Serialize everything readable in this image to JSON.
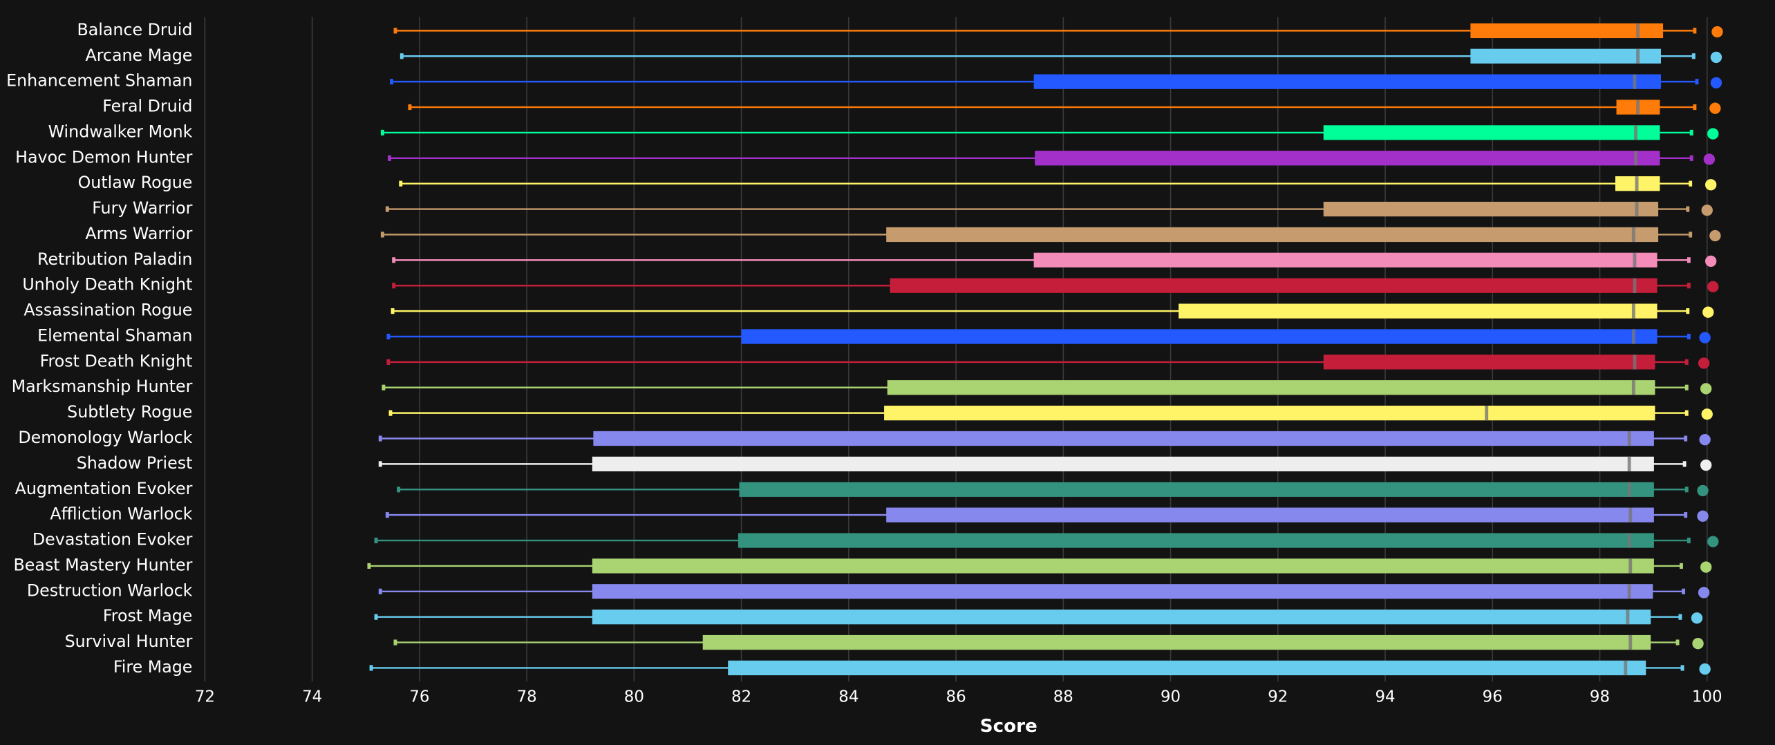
{
  "chart_data": {
    "type": "boxplot",
    "x_label": "Score",
    "xlim": [
      72,
      100
    ],
    "xticks": [
      72,
      74,
      76,
      78,
      80,
      82,
      84,
      86,
      88,
      90,
      92,
      94,
      96,
      98,
      100
    ],
    "grid": true,
    "boxes": [
      {
        "name": "Balance Druid",
        "color": "#ff7c0a",
        "whislo": 75.55,
        "q1": 95.59,
        "med": 98.71,
        "q3": 99.18,
        "whishi": 99.77,
        "top": 100.19
      },
      {
        "name": "Arcane Mage",
        "color": "#68ccef",
        "whislo": 75.67,
        "q1": 95.59,
        "med": 98.71,
        "q3": 99.14,
        "whishi": 99.75,
        "top": 100.17
      },
      {
        "name": "Enhancement Shaman",
        "color": "#2459ff",
        "whislo": 75.48,
        "q1": 87.45,
        "med": 98.65,
        "q3": 99.14,
        "whishi": 99.81,
        "top": 100.17
      },
      {
        "name": "Feral Druid",
        "color": "#ff7c0a",
        "whislo": 75.82,
        "q1": 98.31,
        "med": 98.71,
        "q3": 99.12,
        "whishi": 99.77,
        "top": 100.15
      },
      {
        "name": "Windwalker Monk",
        "color": "#00ff98",
        "whislo": 75.31,
        "q1": 92.85,
        "med": 98.67,
        "q3": 99.12,
        "whishi": 99.71,
        "top": 100.11
      },
      {
        "name": "Havoc Demon Hunter",
        "color": "#a330c9",
        "whislo": 75.44,
        "q1": 87.47,
        "med": 98.67,
        "q3": 99.12,
        "whishi": 99.71,
        "top": 100.04
      },
      {
        "name": "Outlaw Rogue",
        "color": "#fff468",
        "whislo": 75.65,
        "q1": 98.29,
        "med": 98.69,
        "q3": 99.12,
        "whishi": 99.69,
        "top": 100.07
      },
      {
        "name": "Fury Warrior",
        "color": "#c69b6d",
        "whislo": 75.4,
        "q1": 92.85,
        "med": 98.69,
        "q3": 99.09,
        "whishi": 99.64,
        "top": 100.0
      },
      {
        "name": "Arms Warrior",
        "color": "#c69b6d",
        "whislo": 75.31,
        "q1": 84.7,
        "med": 98.63,
        "q3": 99.09,
        "whishi": 99.69,
        "top": 100.15
      },
      {
        "name": "Retribution Paladin",
        "color": "#f48cba",
        "whislo": 75.52,
        "q1": 87.45,
        "med": 98.65,
        "q3": 99.07,
        "whishi": 99.66,
        "top": 100.07
      },
      {
        "name": "Unholy Death Knight",
        "color": "#c41e3a",
        "whislo": 75.52,
        "q1": 84.77,
        "med": 98.65,
        "q3": 99.07,
        "whishi": 99.66,
        "top": 100.11
      },
      {
        "name": "Assassination Rogue",
        "color": "#fff468",
        "whislo": 75.5,
        "q1": 90.15,
        "med": 98.63,
        "q3": 99.07,
        "whishi": 99.64,
        "top": 100.02
      },
      {
        "name": "Elemental Shaman",
        "color": "#2459ff",
        "whislo": 75.42,
        "q1": 82.0,
        "med": 98.63,
        "q3": 99.07,
        "whishi": 99.66,
        "top": 99.96
      },
      {
        "name": "Frost Death Knight",
        "color": "#c41e3a",
        "whislo": 75.42,
        "q1": 92.85,
        "med": 98.65,
        "q3": 99.03,
        "whishi": 99.62,
        "top": 99.94
      },
      {
        "name": "Marksmanship Hunter",
        "color": "#aad372",
        "whislo": 75.33,
        "q1": 84.72,
        "med": 98.63,
        "q3": 99.03,
        "whishi": 99.62,
        "top": 99.98
      },
      {
        "name": "Subtlety Rogue",
        "color": "#fff468",
        "whislo": 75.46,
        "q1": 84.66,
        "med": 95.89,
        "q3": 99.03,
        "whishi": 99.62,
        "top": 100.0
      },
      {
        "name": "Demonology Warlock",
        "color": "#8788ee",
        "whislo": 75.27,
        "q1": 79.24,
        "med": 98.55,
        "q3": 99.01,
        "whishi": 99.6,
        "top": 99.96
      },
      {
        "name": "Shadow Priest",
        "color": "#eeeeee",
        "whislo": 75.27,
        "q1": 79.22,
        "med": 98.55,
        "q3": 99.01,
        "whishi": 99.58,
        "top": 99.98
      },
      {
        "name": "Augmentation Evoker",
        "color": "#33937f",
        "whislo": 75.61,
        "q1": 81.96,
        "med": 98.55,
        "q3": 99.01,
        "whishi": 99.62,
        "top": 99.92
      },
      {
        "name": "Affliction Warlock",
        "color": "#8788ee",
        "whislo": 75.4,
        "q1": 84.7,
        "med": 98.57,
        "q3": 99.01,
        "whishi": 99.6,
        "top": 99.92
      },
      {
        "name": "Devastation Evoker",
        "color": "#33937f",
        "whislo": 75.19,
        "q1": 81.94,
        "med": 98.55,
        "q3": 99.01,
        "whishi": 99.66,
        "top": 100.11
      },
      {
        "name": "Beast Mastery Hunter",
        "color": "#aad372",
        "whislo": 75.06,
        "q1": 79.22,
        "med": 98.57,
        "q3": 99.01,
        "whishi": 99.52,
        "top": 99.98
      },
      {
        "name": "Destruction Warlock",
        "color": "#8788ee",
        "whislo": 75.27,
        "q1": 79.22,
        "med": 98.55,
        "q3": 98.99,
        "whishi": 99.56,
        "top": 99.94
      },
      {
        "name": "Frost Mage",
        "color": "#68ccef",
        "whislo": 75.19,
        "q1": 79.22,
        "med": 98.52,
        "q3": 98.95,
        "whishi": 99.5,
        "top": 99.81
      },
      {
        "name": "Survival Hunter",
        "color": "#aad372",
        "whislo": 75.55,
        "q1": 81.28,
        "med": 98.57,
        "q3": 98.95,
        "whishi": 99.45,
        "top": 99.83
      },
      {
        "name": "Fire Mage",
        "color": "#68ccef",
        "whislo": 75.1,
        "q1": 81.75,
        "med": 98.48,
        "q3": 98.86,
        "whishi": 99.54,
        "top": 99.96
      }
    ]
  }
}
